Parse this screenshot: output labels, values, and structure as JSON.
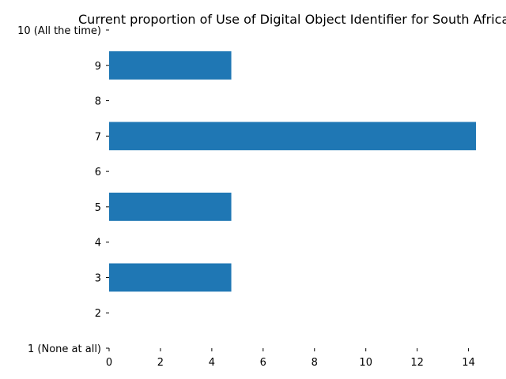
{
  "chart_data": {
    "type": "bar",
    "orientation": "horizontal",
    "title": "Current proportion of Use of Digital Object Identifier for South Africa",
    "xlabel": "",
    "ylabel": "",
    "categories": [
      "1 (None at all)",
      "2",
      "3",
      "4",
      "5",
      "6",
      "7",
      "8",
      "9",
      "10 (All the time)"
    ],
    "values": [
      0,
      0,
      4.76,
      0,
      4.76,
      0,
      14.29,
      0,
      4.76,
      0
    ],
    "xlim": [
      0,
      14.29
    ],
    "xticks": [
      0,
      2,
      4,
      6,
      8,
      10,
      12,
      14
    ],
    "bar_color": "#1f77b4",
    "grid": false,
    "legend": "none"
  }
}
